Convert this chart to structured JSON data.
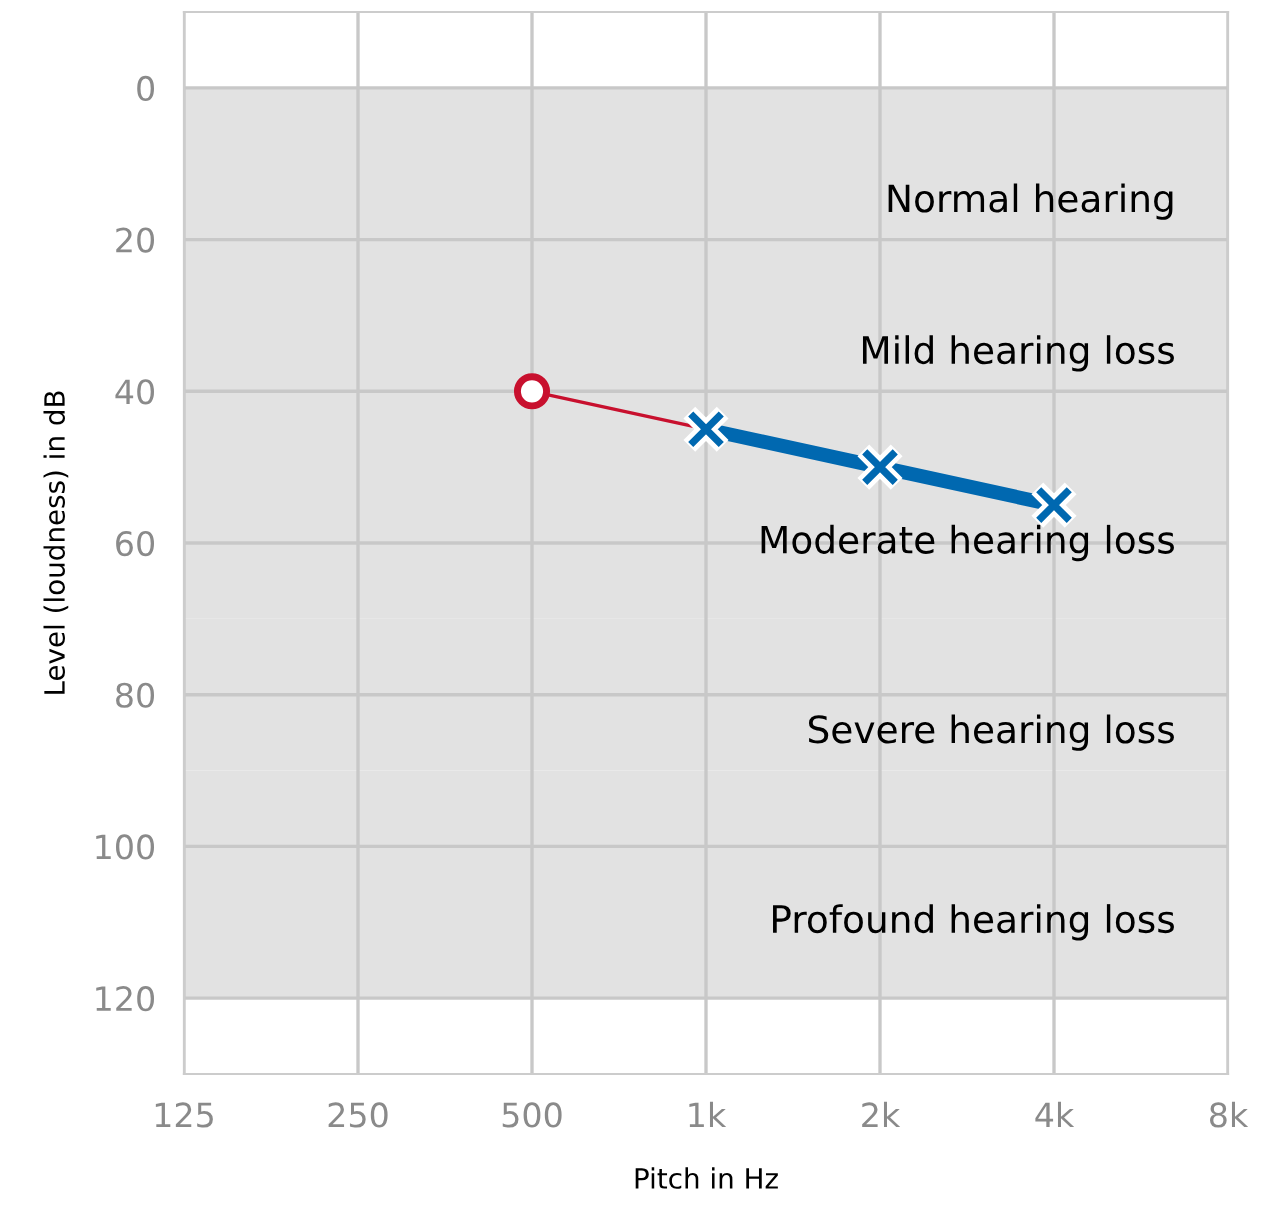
{
  "chart_data": {
    "type": "line",
    "xlabel": "Pitch in Hz",
    "ylabel": "Level (loudness) in dB",
    "log": "x",
    "xlim": [
      125,
      8000
    ],
    "xticks": [
      125,
      250,
      500,
      {
        "value": 1000,
        "label": "1k"
      },
      {
        "value": 2000,
        "label": "2k"
      },
      {
        "value": 4000,
        "label": "4k"
      },
      {
        "value": 8000,
        "label": "8k"
      }
    ],
    "ylim": [
      130,
      -10
    ],
    "yticks": [
      0,
      20,
      40,
      60,
      80,
      100,
      120
    ],
    "grid": true,
    "bands": [
      {
        "axis": "y",
        "from": 0,
        "to": 20,
        "label": "Normal hearing",
        "color": "#e2e2e2"
      },
      {
        "axis": "y",
        "from": 20,
        "to": 40,
        "label": "Mild hearing loss",
        "color": "#e2e2e2"
      },
      {
        "axis": "y",
        "from": 40,
        "to": 70,
        "label": "Moderate hearing loss",
        "color": "#e2e2e2"
      },
      {
        "axis": "y",
        "from": 70,
        "to": 90,
        "label": "Severe hearing loss",
        "color": "#e2e2e2"
      },
      {
        "axis": "y",
        "from": 90,
        "to": 120,
        "label": "Profound hearing loss",
        "color": "#e2e2e2"
      }
    ],
    "series": [
      {
        "color": "#c8102e",
        "x": [
          500,
          1000
        ],
        "values": [
          40,
          45
        ]
      },
      {
        "type": "scatter",
        "color": "#c8102e",
        "marker": "circle",
        "x": [
          500
        ],
        "values": [
          40
        ]
      },
      {
        "color": "#0068b0",
        "marker": "cross",
        "x": [
          1000,
          2000,
          4000
        ],
        "values": [
          45,
          50,
          55
        ]
      }
    ]
  }
}
